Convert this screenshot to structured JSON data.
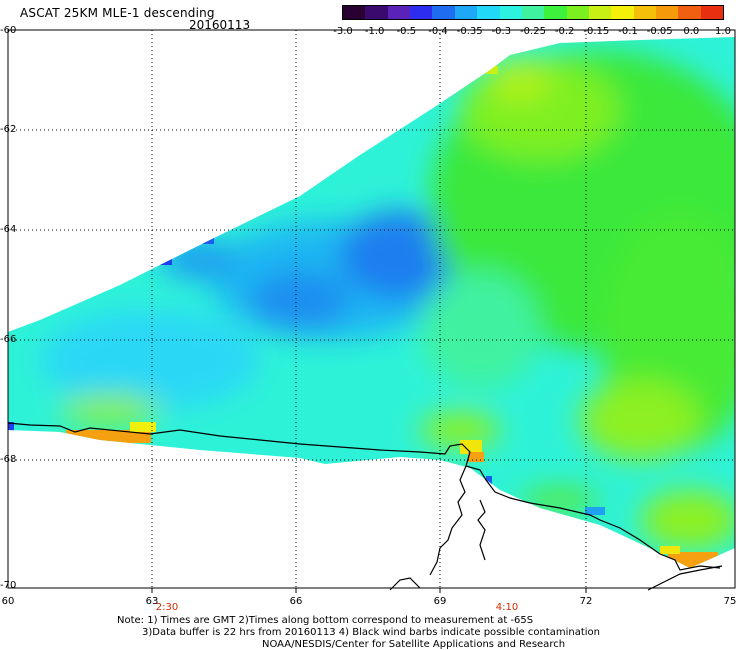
{
  "header": {
    "title": "ASCAT 25KM MLE-1 descending",
    "date": "20160113"
  },
  "colorbar": {
    "colors": [
      "#2a0033",
      "#3a0a6e",
      "#5a22b8",
      "#2d2df0",
      "#1e6cf0",
      "#1fa8f5",
      "#22d8f8",
      "#2ef2e0",
      "#3ff2a0",
      "#3cf23c",
      "#7cf01e",
      "#c8f014",
      "#f5f00a",
      "#f5c00a",
      "#f59a0a",
      "#f06010",
      "#e83010"
    ],
    "ticks": [
      "-3.0",
      "-1.0",
      "-0.5",
      "-0.4",
      "-0.35",
      "-0.3",
      "-0.25",
      "-0.2",
      "-0.15",
      "-0.1",
      "-0.05",
      "0.0",
      "1.0"
    ]
  },
  "axes": {
    "lat_labels": [
      "-60",
      "-62",
      "-64",
      "-66",
      "-68",
      "-70"
    ],
    "lon_labels": [
      "60",
      "63",
      "66",
      "69",
      "72",
      "75"
    ],
    "time_labels": [
      "2:30",
      "4:10"
    ]
  },
  "notes": {
    "line1": "Note: 1) Times are GMT 2)Times along bottom correspond to measurement at -65S",
    "line2": "3)Data buffer is 22 hrs from 20160113 4) Black wind barbs indicate possible contamination",
    "line3": "NOAA/NESDIS/Center for Satellite Applications and Research"
  },
  "colors": {
    "deep_blue": "#1e5cf0",
    "blue": "#1fa0f0",
    "cyan": "#22e8f0",
    "teal": "#2ef2c8",
    "green": "#33e833",
    "lime": "#90f020",
    "yellow": "#f0f00a",
    "orange": "#f5a010",
    "coast": "#000000"
  }
}
